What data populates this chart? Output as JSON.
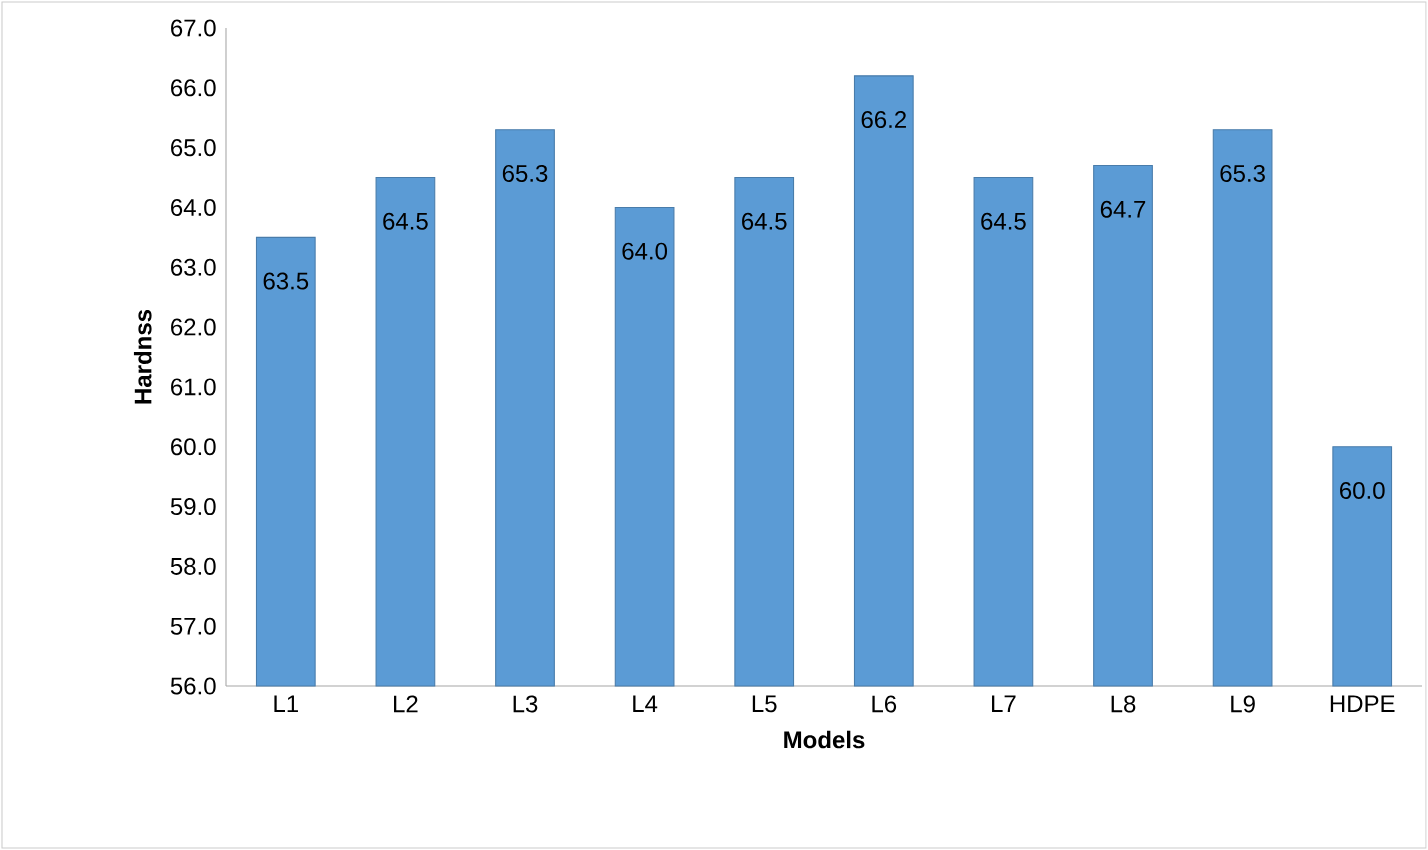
{
  "chart_data": {
    "type": "bar",
    "xlabel": "Models",
    "ylabel": "Hardnss",
    "categories": [
      "L1",
      "L2",
      "L3",
      "L4",
      "L5",
      "L6",
      "L7",
      "L8",
      "L9",
      "HDPE"
    ],
    "values": [
      63.5,
      64.5,
      65.3,
      64.0,
      64.5,
      66.2,
      64.5,
      64.7,
      65.3,
      60.0
    ],
    "value_labels": [
      "63.5",
      "64.5",
      "65.3",
      "64.0",
      "64.5",
      "66.2",
      "64.5",
      "64.7",
      "65.3",
      "60.0"
    ],
    "color": "#5b9bd5",
    "ylim": [
      56,
      67
    ],
    "yticks": [
      {
        "value": 56,
        "label": "56.0"
      },
      {
        "value": 57,
        "label": "57.0"
      },
      {
        "value": 58,
        "label": "58.0"
      },
      {
        "value": 59,
        "label": "59.0"
      },
      {
        "value": 60,
        "label": "60.0"
      },
      {
        "value": 61,
        "label": "61.0"
      },
      {
        "value": 62,
        "label": "62.0"
      },
      {
        "value": 63,
        "label": "63.0"
      },
      {
        "value": 64,
        "label": "64.0"
      },
      {
        "value": 65,
        "label": "65.0"
      },
      {
        "value": 66,
        "label": "66.0"
      },
      {
        "value": 67,
        "label": "67.0"
      }
    ],
    "grid": false
  }
}
